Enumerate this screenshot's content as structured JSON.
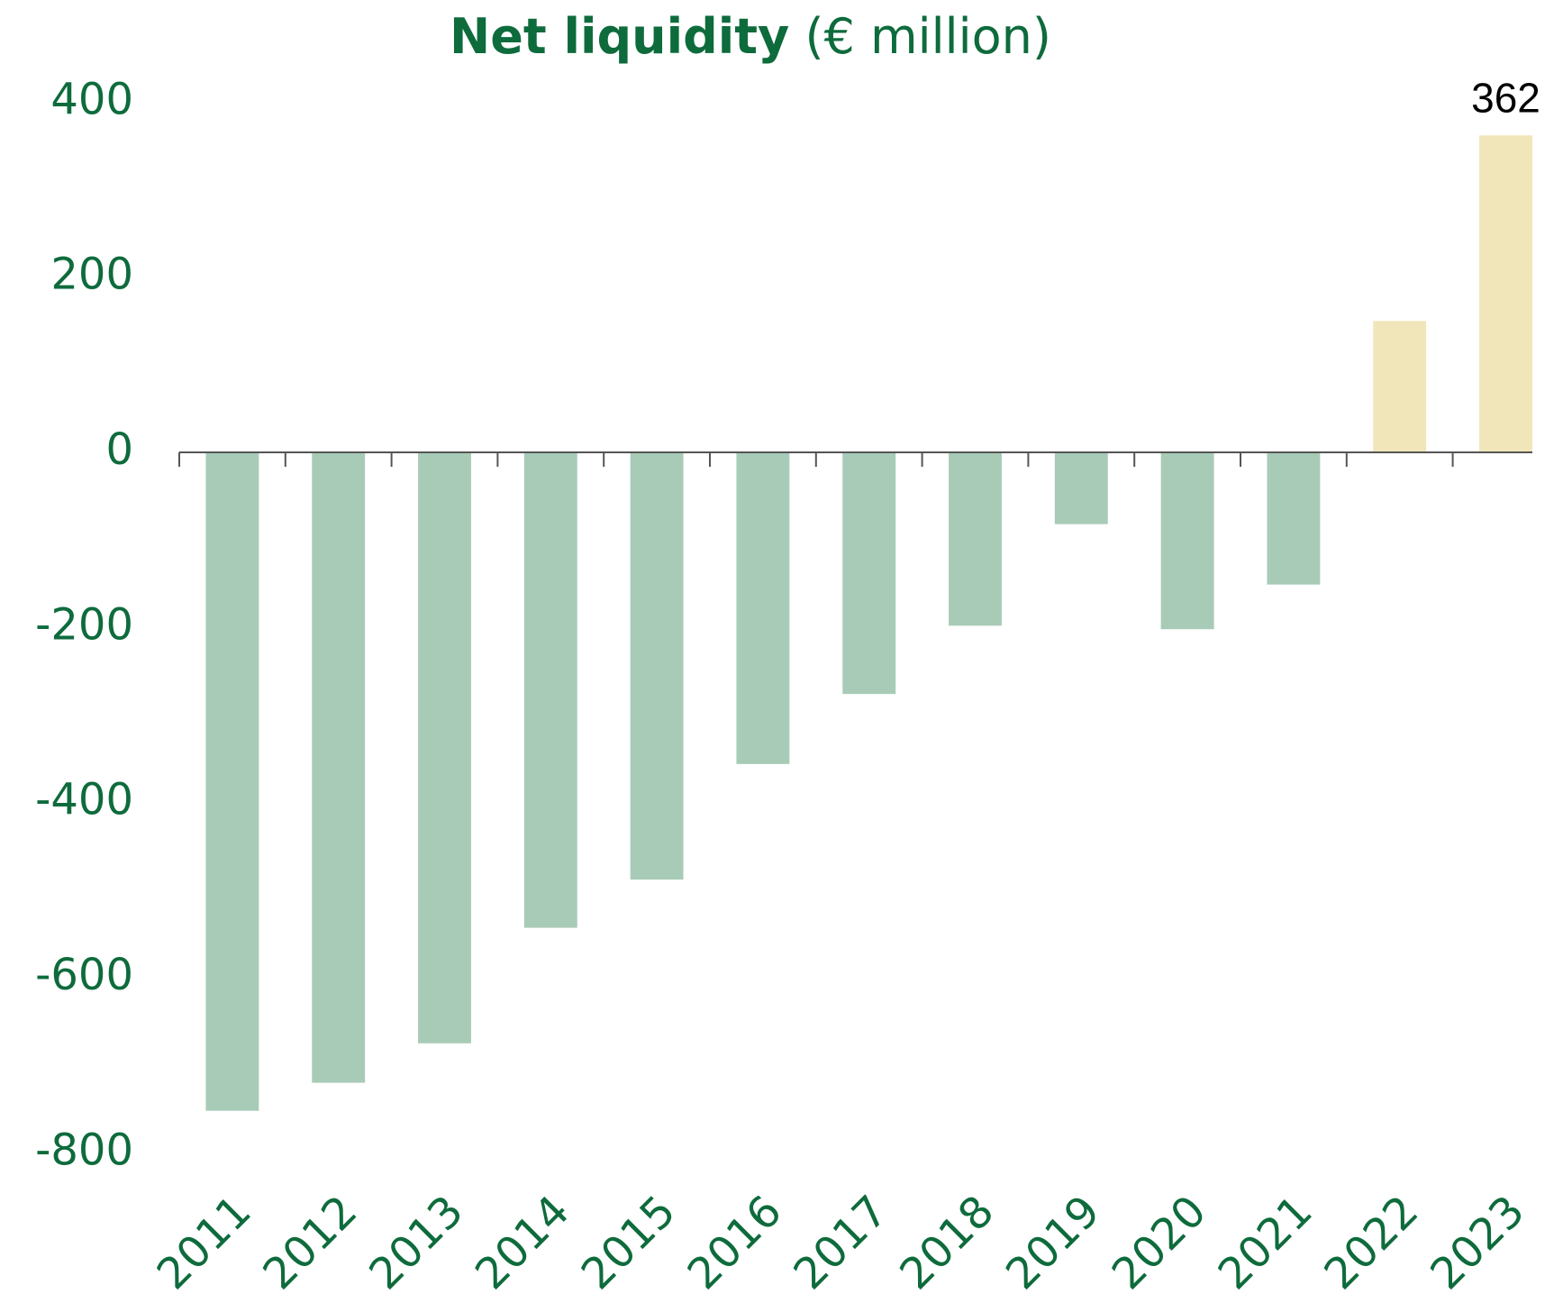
{
  "chart_data": {
    "type": "bar",
    "title": "Net liquidity",
    "title_unit": "(€ million)",
    "categories": [
      "2011",
      "2012",
      "2013",
      "2014",
      "2015",
      "2016",
      "2017",
      "2018",
      "2019",
      "2020",
      "2021",
      "2022",
      "2023"
    ],
    "values": [
      -752,
      -720,
      -675,
      -543,
      -488,
      -356,
      -276,
      -198,
      -82,
      -202,
      -151,
      150,
      362
    ],
    "colors": [
      "#a8cbb7",
      "#a8cbb7",
      "#a8cbb7",
      "#a8cbb7",
      "#a8cbb7",
      "#a8cbb7",
      "#a8cbb7",
      "#a8cbb7",
      "#a8cbb7",
      "#a8cbb7",
      "#a8cbb7",
      "#f0e6b9",
      "#f0e6b9"
    ],
    "value_labels": [
      null,
      null,
      null,
      null,
      null,
      null,
      null,
      null,
      null,
      null,
      null,
      null,
      "362"
    ],
    "ylim": [
      -800,
      400
    ],
    "yticks": [
      -800,
      -600,
      -400,
      -200,
      0,
      200,
      400
    ],
    "grid": false
  }
}
